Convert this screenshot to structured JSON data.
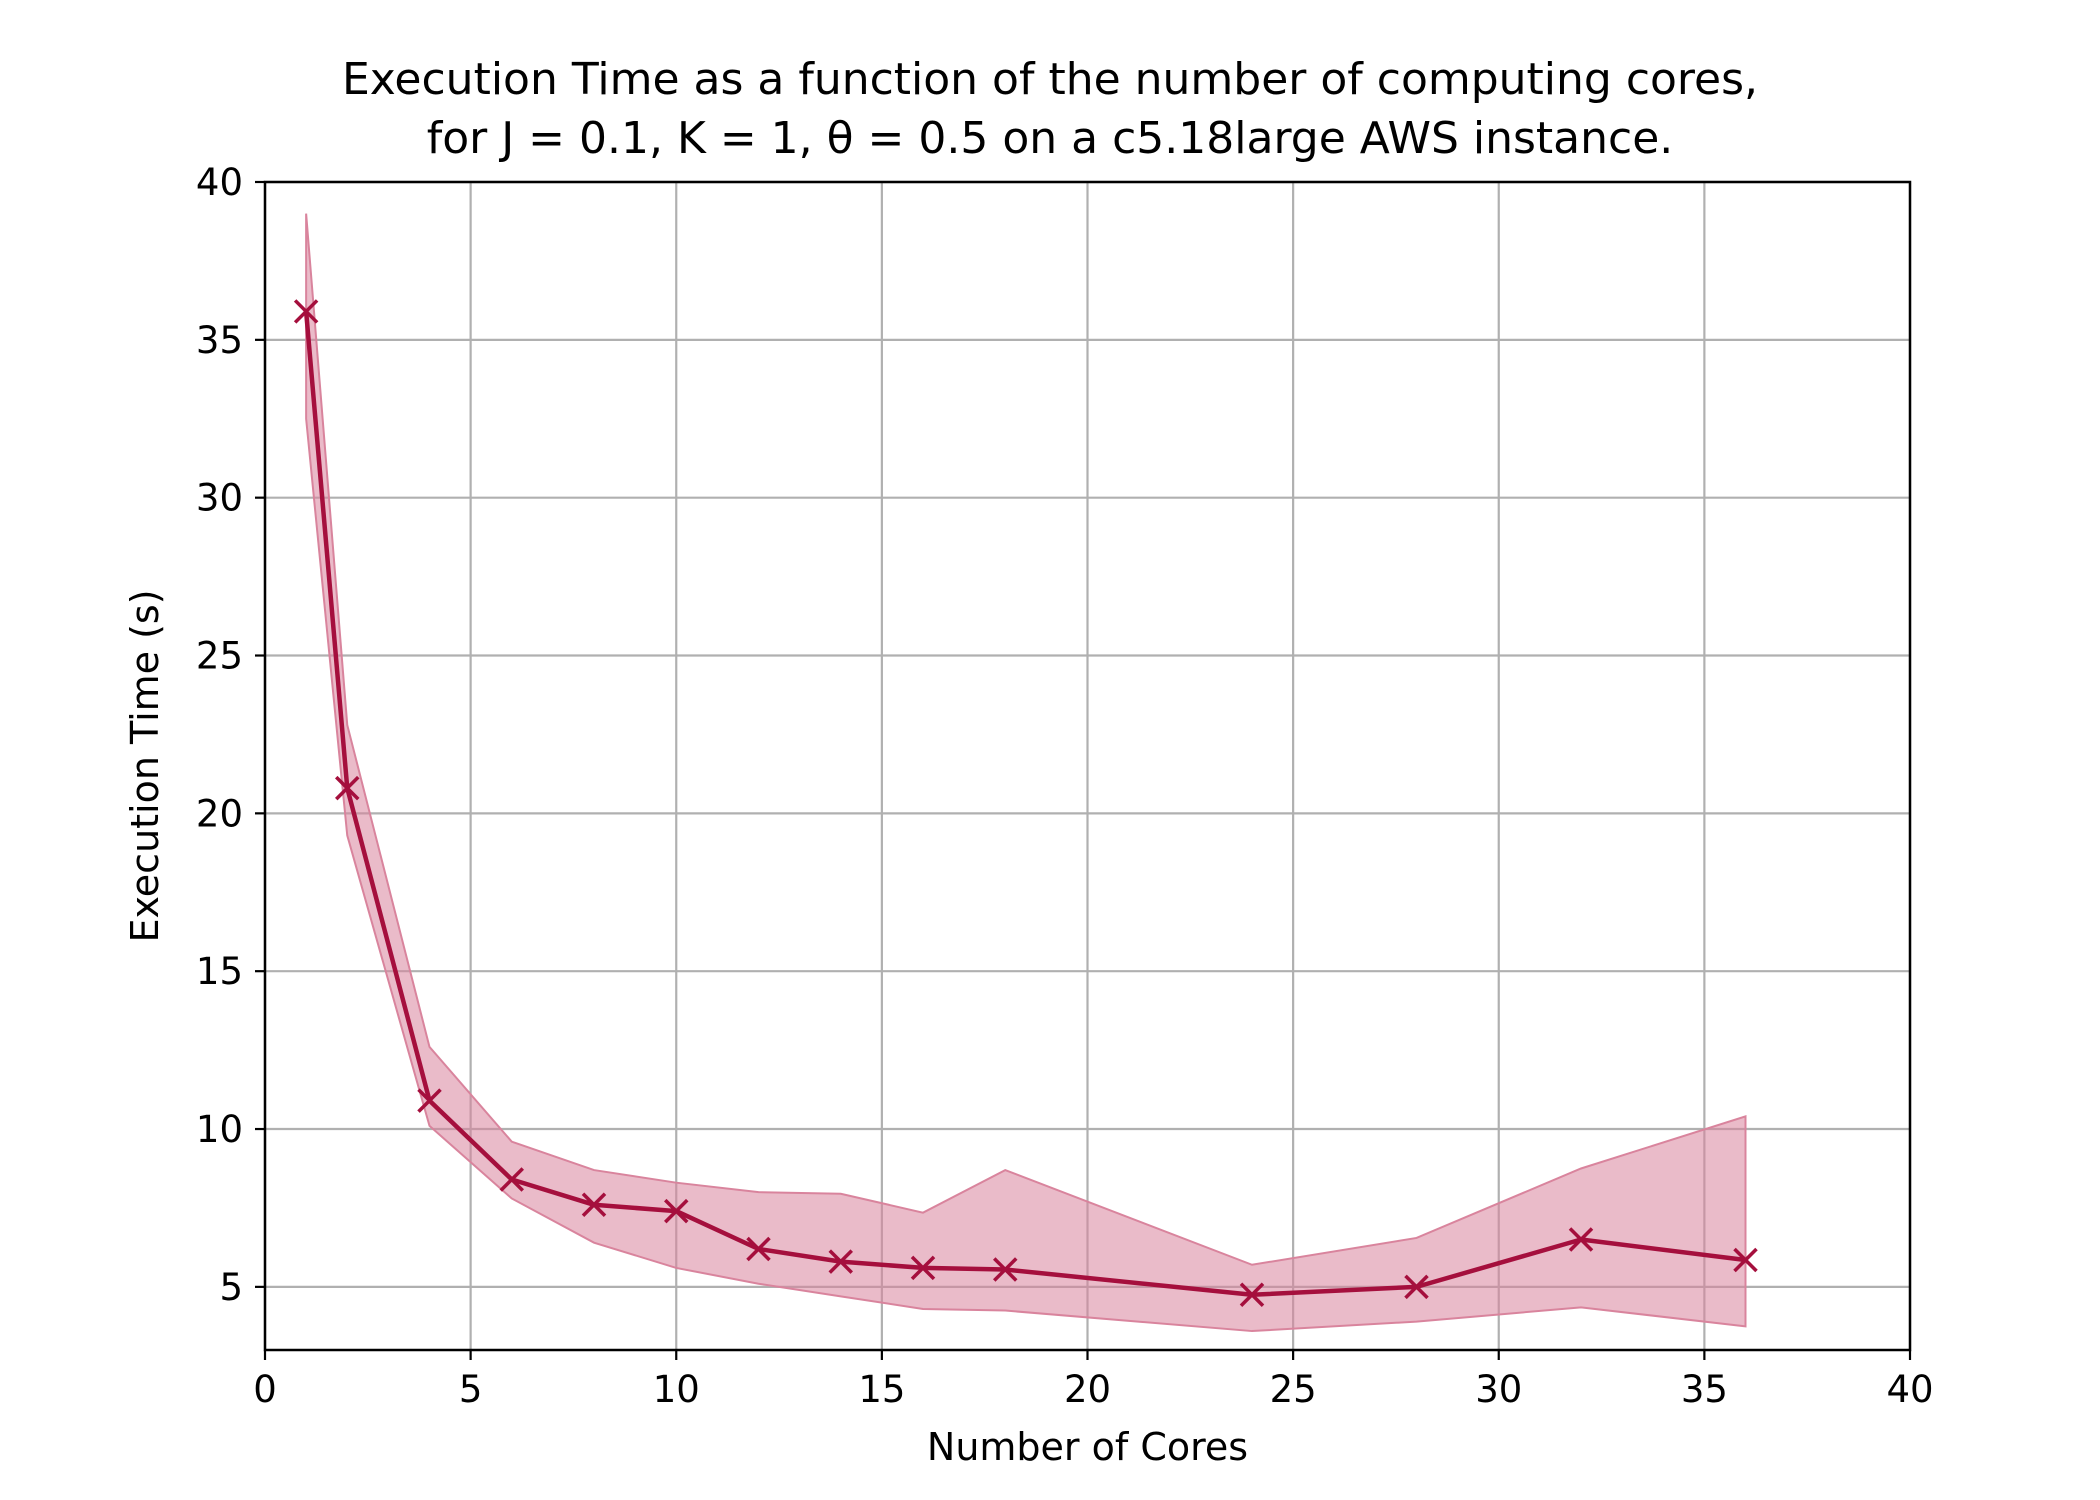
{
  "chart_data": {
    "type": "line",
    "title_line1": "Execution Time as a function of the number of computing cores,",
    "title_line2": "for J = 0.1, K = 1, θ = 0.5 on a c5.18large AWS instance.",
    "xlabel": "Number of Cores",
    "ylabel": "Execution Time (s)",
    "xlim": [
      0,
      40
    ],
    "ylim": [
      3,
      40
    ],
    "xticks": [
      0,
      5,
      10,
      15,
      20,
      25,
      30,
      35,
      40
    ],
    "yticks": [
      5,
      10,
      15,
      20,
      25,
      30,
      35,
      40
    ],
    "grid": true,
    "series": [
      {
        "name": "Execution Time",
        "color": "#a50f3d",
        "marker": "x",
        "x": [
          1,
          2,
          4,
          6,
          8,
          10,
          12,
          14,
          16,
          18,
          24,
          28,
          32,
          36
        ],
        "y": [
          35.9,
          20.8,
          10.9,
          8.4,
          7.6,
          7.4,
          6.2,
          5.8,
          5.6,
          5.55,
          4.75,
          5.0,
          6.5,
          5.85
        ],
        "band_lower": [
          32.5,
          19.3,
          10.1,
          7.8,
          6.4,
          5.6,
          5.1,
          4.7,
          4.3,
          4.25,
          3.6,
          3.9,
          4.35,
          3.75
        ],
        "band_upper": [
          39.0,
          22.8,
          12.6,
          9.6,
          8.7,
          8.3,
          8.0,
          7.95,
          7.35,
          8.7,
          5.7,
          6.55,
          8.75,
          10.4
        ],
        "band_color": "#d9849d"
      }
    ]
  }
}
